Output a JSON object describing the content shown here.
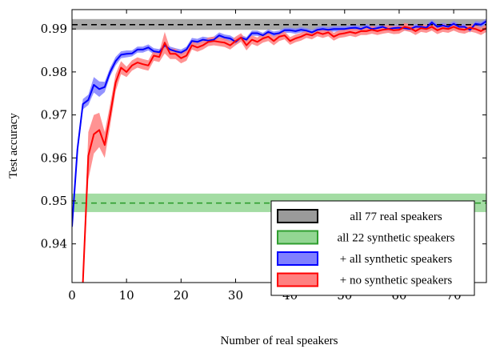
{
  "chart_data": {
    "type": "line",
    "xlabel": "Number of real speakers",
    "ylabel": "Test accuracy",
    "xlim": [
      0,
      76
    ],
    "ylim": [
      0.931,
      0.9945
    ],
    "xticks": [
      0,
      10,
      20,
      30,
      40,
      50,
      60,
      70
    ],
    "yticks": [
      0.94,
      0.95,
      0.96,
      0.97,
      0.98,
      0.99
    ],
    "xtick_labels": [
      "0",
      "10",
      "20",
      "30",
      "40",
      "50",
      "60",
      "70"
    ],
    "ytick_labels": [
      "0.94",
      "0.95",
      "0.96",
      "0.97",
      "0.98",
      "0.99"
    ],
    "grid": false,
    "legend_position": "bottom-right",
    "reference_lines": [
      {
        "name": "all 77 real speakers",
        "value": 0.991,
        "band": [
          0.9898,
          0.9923
        ],
        "color": "#000000",
        "band_color": "#9a9a9a",
        "dashed": true
      },
      {
        "name": "all 22 synthetic speakers",
        "value": 0.9495,
        "band": [
          0.9474,
          0.9517
        ],
        "color": "#2f9e2f",
        "band_color": "#93d693",
        "dashed": true
      }
    ],
    "series": [
      {
        "name": "+ all synthetic speakers",
        "color": "#0000ff",
        "band_color": "#8080ff",
        "x": [
          0,
          1,
          2,
          3,
          4,
          5,
          6,
          7,
          8,
          9,
          10,
          11,
          12,
          13,
          14,
          15,
          16,
          17,
          18,
          19,
          20,
          21,
          22,
          23,
          24,
          25,
          26,
          27,
          28,
          29,
          30,
          31,
          32,
          33,
          34,
          35,
          36,
          37,
          38,
          39,
          40,
          41,
          42,
          43,
          44,
          45,
          46,
          47,
          48,
          49,
          50,
          51,
          52,
          53,
          54,
          55,
          56,
          57,
          58,
          59,
          60,
          61,
          62,
          63,
          64,
          65,
          66,
          67,
          68,
          69,
          70,
          71,
          72,
          73,
          74,
          75,
          76
        ],
        "values": [
          0.944,
          0.962,
          0.9725,
          0.9735,
          0.977,
          0.976,
          0.9765,
          0.98,
          0.9825,
          0.984,
          0.9842,
          0.9843,
          0.9852,
          0.9852,
          0.9857,
          0.9848,
          0.9846,
          0.9862,
          0.9852,
          0.9848,
          0.9845,
          0.9852,
          0.9872,
          0.987,
          0.9875,
          0.9873,
          0.9875,
          0.9885,
          0.988,
          0.9878,
          0.987,
          0.988,
          0.9875,
          0.989,
          0.989,
          0.9885,
          0.9893,
          0.9888,
          0.989,
          0.9897,
          0.9897,
          0.9895,
          0.9898,
          0.9896,
          0.9892,
          0.9898,
          0.99,
          0.9898,
          0.99,
          0.99,
          0.99,
          0.9902,
          0.9903,
          0.99,
          0.9905,
          0.99,
          0.9902,
          0.9905,
          0.99,
          0.9902,
          0.9903,
          0.9902,
          0.99,
          0.9905,
          0.9905,
          0.9903,
          0.9915,
          0.9905,
          0.9908,
          0.9905,
          0.9912,
          0.9905,
          0.9905,
          0.9898,
          0.9912,
          0.991,
          0.9918
        ],
        "band_width": [
          0.0012,
          0.0012,
          0.0012,
          0.0012,
          0.0018,
          0.0018,
          0.0012,
          0.001,
          0.001,
          0.0008,
          0.0008,
          0.0007,
          0.0007,
          0.0007,
          0.0007,
          0.0007,
          0.0007,
          0.0007,
          0.0007,
          0.0007,
          0.0007,
          0.0007,
          0.0007,
          0.0007,
          0.0007,
          0.0007,
          0.0007,
          0.0007,
          0.0007,
          0.0007,
          0.0007,
          0.0006,
          0.0006,
          0.0006,
          0.0006,
          0.0006,
          0.0006,
          0.0006,
          0.0006,
          0.0006,
          0.0006,
          0.0006,
          0.0006,
          0.0006,
          0.0006,
          0.0006,
          0.0006,
          0.0006,
          0.0006,
          0.0006,
          0.0006,
          0.0006,
          0.0006,
          0.0006,
          0.0006,
          0.0006,
          0.0006,
          0.0006,
          0.0006,
          0.0006,
          0.0006,
          0.0006,
          0.0006,
          0.0006,
          0.0006,
          0.0006,
          0.0006,
          0.0006,
          0.0006,
          0.0006,
          0.0006,
          0.0006,
          0.0006,
          0.0006,
          0.0006,
          0.0006,
          0.0006
        ]
      },
      {
        "name": "+ no synthetic speakers",
        "color": "#ff0000",
        "band_color": "#ff8080",
        "x": [
          2,
          3,
          4,
          5,
          6,
          7,
          8,
          9,
          10,
          11,
          12,
          13,
          14,
          15,
          16,
          17,
          18,
          19,
          20,
          21,
          22,
          23,
          24,
          25,
          26,
          27,
          28,
          29,
          30,
          31,
          32,
          33,
          34,
          35,
          36,
          37,
          38,
          39,
          40,
          41,
          42,
          43,
          44,
          45,
          46,
          47,
          48,
          49,
          50,
          51,
          52,
          53,
          54,
          55,
          56,
          57,
          58,
          59,
          60,
          61,
          62,
          63,
          64,
          65,
          66,
          67,
          68,
          69,
          70,
          71,
          72,
          73,
          74,
          75,
          76
        ],
        "values": [
          0.931,
          0.9605,
          0.9655,
          0.9665,
          0.963,
          0.97,
          0.9775,
          0.981,
          0.98,
          0.9815,
          0.9822,
          0.9818,
          0.9815,
          0.9838,
          0.9835,
          0.9868,
          0.9842,
          0.9842,
          0.9832,
          0.9838,
          0.9862,
          0.9857,
          0.9862,
          0.987,
          0.9872,
          0.987,
          0.9868,
          0.9862,
          0.9872,
          0.988,
          0.9862,
          0.9875,
          0.987,
          0.9878,
          0.9882,
          0.9872,
          0.9882,
          0.9885,
          0.9872,
          0.9878,
          0.9882,
          0.9888,
          0.9885,
          0.9892,
          0.9888,
          0.9892,
          0.9882,
          0.9888,
          0.989,
          0.9893,
          0.989,
          0.9895,
          0.9895,
          0.9898,
          0.9895,
          0.9898,
          0.99,
          0.9897,
          0.9898,
          0.9905,
          0.9902,
          0.9895,
          0.9902,
          0.99,
          0.9905,
          0.9897,
          0.9902,
          0.99,
          0.9905,
          0.99,
          0.9898,
          0.9903,
          0.99,
          0.9895,
          0.9902
        ],
        "band_width": [
          0.0015,
          0.0055,
          0.0045,
          0.004,
          0.003,
          0.0025,
          0.002,
          0.0015,
          0.0012,
          0.0012,
          0.0012,
          0.0012,
          0.0012,
          0.0012,
          0.0012,
          0.0025,
          0.0012,
          0.0012,
          0.0012,
          0.0012,
          0.001,
          0.001,
          0.001,
          0.001,
          0.001,
          0.001,
          0.001,
          0.001,
          0.001,
          0.001,
          0.0012,
          0.001,
          0.001,
          0.001,
          0.001,
          0.001,
          0.001,
          0.0009,
          0.0009,
          0.0009,
          0.0009,
          0.0009,
          0.0009,
          0.0009,
          0.0009,
          0.0009,
          0.0009,
          0.0009,
          0.0009,
          0.0009,
          0.0009,
          0.0009,
          0.0009,
          0.0009,
          0.0009,
          0.0009,
          0.0009,
          0.0009,
          0.0009,
          0.0009,
          0.0009,
          0.0009,
          0.0009,
          0.0009,
          0.0009,
          0.0009,
          0.0009,
          0.0009,
          0.0009,
          0.0009,
          0.0009,
          0.0009,
          0.0009,
          0.0009,
          0.0009
        ]
      }
    ]
  }
}
